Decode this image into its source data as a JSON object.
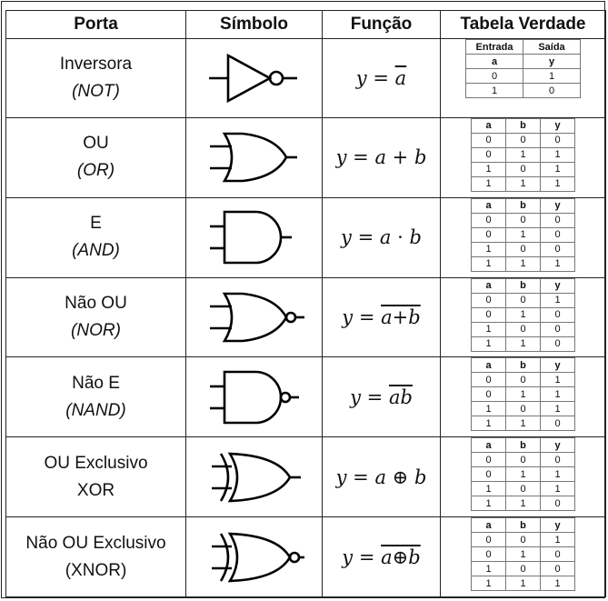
{
  "header": [
    "Porta",
    "Símbolo",
    "Função",
    "Tabela Verdade"
  ],
  "gates": [
    {
      "name": "Inversora",
      "sub": "(NOT)",
      "sub_italic": true,
      "symbol": "not-gate-symbol",
      "function": {
        "lhs": "y",
        "eq": "=",
        "expr": "a",
        "overline": true
      },
      "truth": {
        "super": [
          "Entrada",
          "Saída"
        ],
        "cols": [
          "a",
          "y"
        ],
        "rows": [
          [
            "0",
            "1"
          ],
          [
            "1",
            "0"
          ]
        ]
      }
    },
    {
      "name": "OU",
      "sub": "(OR)",
      "sub_italic": true,
      "symbol": "or-gate-symbol",
      "function": {
        "lhs": "y",
        "eq": "=",
        "a": "a",
        "op": "+",
        "b": "b"
      },
      "truth": {
        "cols": [
          "a",
          "b",
          "y"
        ],
        "rows": [
          [
            "0",
            "0",
            "0"
          ],
          [
            "0",
            "1",
            "1"
          ],
          [
            "1",
            "0",
            "1"
          ],
          [
            "1",
            "1",
            "1"
          ]
        ]
      }
    },
    {
      "name": "E",
      "sub": "(AND)",
      "sub_italic": true,
      "symbol": "and-gate-symbol",
      "function": {
        "lhs": "y",
        "eq": "=",
        "a": "a",
        "op": "·",
        "b": "b"
      },
      "truth": {
        "cols": [
          "a",
          "b",
          "y"
        ],
        "rows": [
          [
            "0",
            "0",
            "0"
          ],
          [
            "0",
            "1",
            "0"
          ],
          [
            "1",
            "0",
            "0"
          ],
          [
            "1",
            "1",
            "1"
          ]
        ]
      }
    },
    {
      "name": "Não OU",
      "sub": "(NOR)",
      "sub_italic": true,
      "symbol": "nor-gate-symbol",
      "function": {
        "lhs": "y",
        "eq": "=",
        "expr": "a+b",
        "overline": true
      },
      "truth": {
        "cols": [
          "a",
          "b",
          "y"
        ],
        "rows": [
          [
            "0",
            "0",
            "1"
          ],
          [
            "0",
            "1",
            "0"
          ],
          [
            "1",
            "0",
            "0"
          ],
          [
            "1",
            "1",
            "0"
          ]
        ]
      }
    },
    {
      "name": "Não E",
      "sub": "(NAND)",
      "sub_italic": true,
      "symbol": "nand-gate-symbol",
      "function": {
        "lhs": "y",
        "eq": "=",
        "expr": "ab",
        "overline": true
      },
      "truth": {
        "cols": [
          "a",
          "b",
          "y"
        ],
        "rows": [
          [
            "0",
            "0",
            "1"
          ],
          [
            "0",
            "1",
            "1"
          ],
          [
            "1",
            "0",
            "1"
          ],
          [
            "1",
            "1",
            "0"
          ]
        ]
      }
    },
    {
      "name": "OU Exclusivo",
      "sub": "XOR",
      "sub_italic": false,
      "symbol": "xor-gate-symbol",
      "function": {
        "lhs": "y",
        "eq": "=",
        "a": "a",
        "op": "⊕",
        "b": "b"
      },
      "truth": {
        "cols": [
          "a",
          "b",
          "y"
        ],
        "rows": [
          [
            "0",
            "0",
            "0"
          ],
          [
            "0",
            "1",
            "1"
          ],
          [
            "1",
            "0",
            "1"
          ],
          [
            "1",
            "1",
            "0"
          ]
        ]
      }
    },
    {
      "name": "Não OU Exclusivo",
      "sub": "(XNOR)",
      "sub_italic": false,
      "symbol": "xnor-gate-symbol",
      "function": {
        "lhs": "y",
        "eq": "=",
        "expr": "a⊕b",
        "overline": true
      },
      "truth": {
        "cols": [
          "a",
          "b",
          "y"
        ],
        "rows": [
          [
            "0",
            "0",
            "1"
          ],
          [
            "0",
            "1",
            "0"
          ],
          [
            "1",
            "0",
            "0"
          ],
          [
            "1",
            "1",
            "1"
          ]
        ]
      }
    }
  ]
}
